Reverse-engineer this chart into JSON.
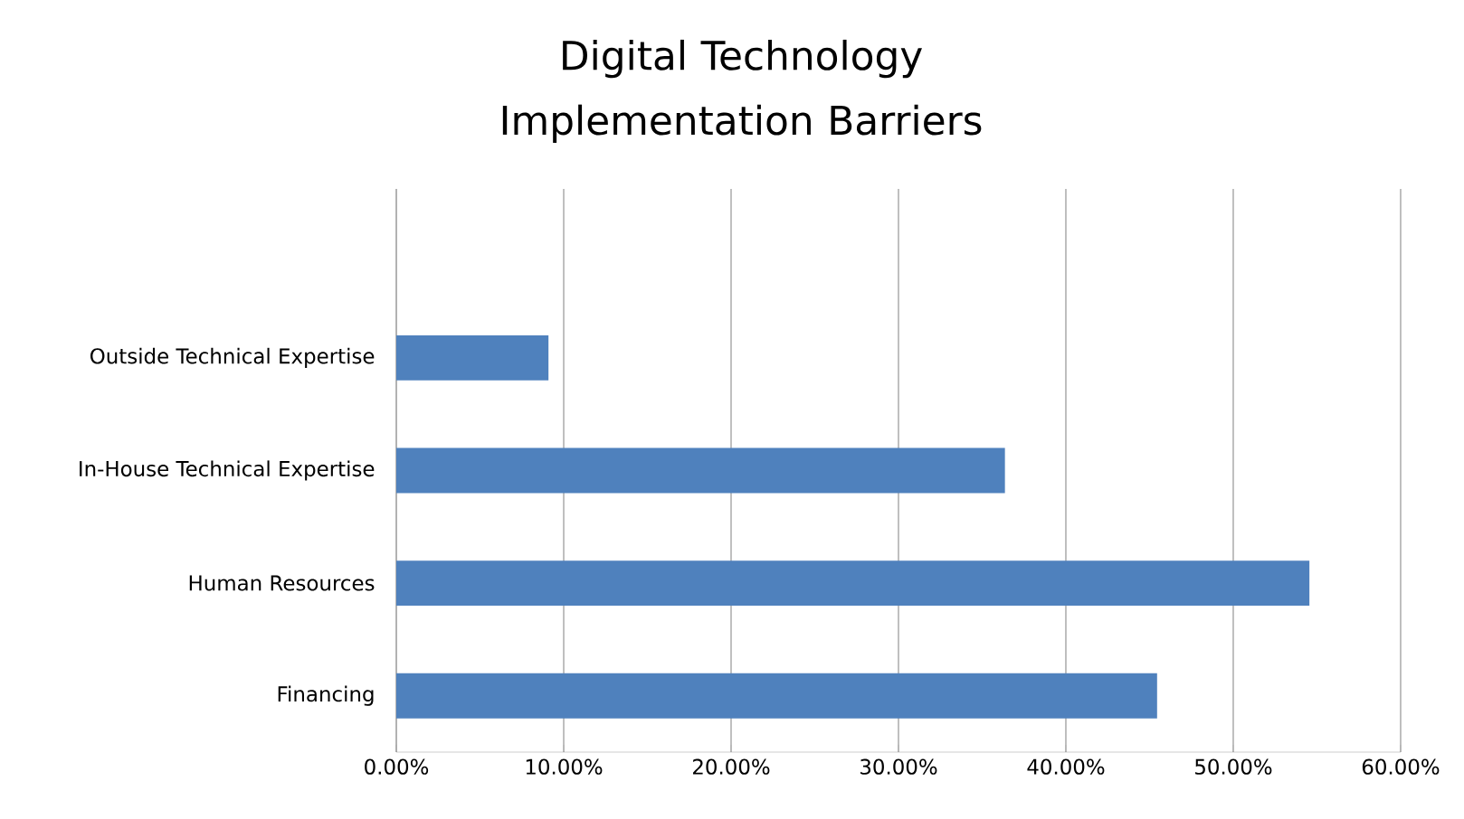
{
  "chart_data": {
    "type": "bar",
    "orientation": "horizontal",
    "title": "Digital Technology Implementation Barriers",
    "categories": [
      null,
      "Outside Technical Expertise",
      "In-House Technical Expertise",
      "Human Resources",
      "Financing"
    ],
    "values": [
      null,
      9.09,
      36.36,
      54.55,
      45.45
    ],
    "color": "#4f81bd",
    "xlim": [
      0,
      60
    ],
    "xticks": [
      {
        "value": 0,
        "label": "0.00%"
      },
      {
        "value": 10,
        "label": "10.00%"
      },
      {
        "value": 20,
        "label": "20.00%"
      },
      {
        "value": 30,
        "label": "30.00%"
      },
      {
        "value": 40,
        "label": "40.00%"
      },
      {
        "value": 50,
        "label": "50.00%"
      },
      {
        "value": 60,
        "label": "60.00%"
      }
    ],
    "grid": "x"
  }
}
